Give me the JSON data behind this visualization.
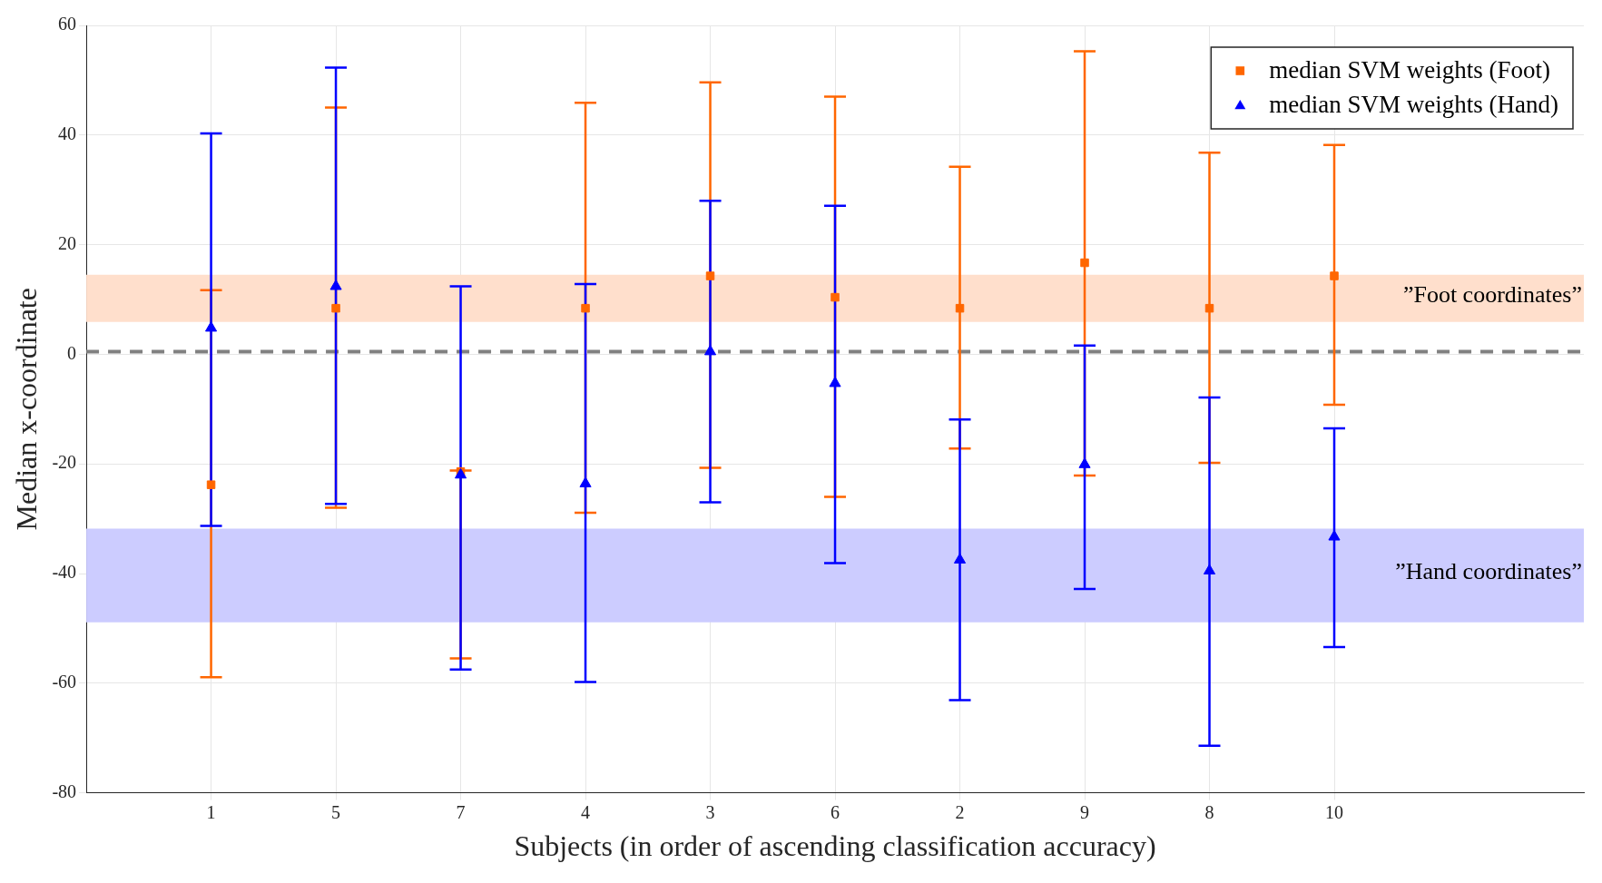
{
  "chart_data": {
    "type": "scatter",
    "xlabel": "Subjects (in order of ascending classification accuracy)",
    "ylabel": "Median x-coordinate",
    "categories": [
      null,
      "1",
      "5",
      "7",
      "4",
      "3",
      "6",
      "2",
      "9",
      "8",
      "10",
      null,
      null
    ],
    "ylim": [
      -80,
      60
    ],
    "yticks": [
      -80,
      -60,
      -40,
      -20,
      0,
      20,
      40,
      60
    ],
    "series": [
      {
        "name": "median SVM weights (Foot)",
        "color": "#ff6600",
        "marker": "square",
        "values": [
          null,
          -23.8,
          8.4,
          -21.4,
          8.4,
          14.3,
          10.4,
          8.4,
          16.7,
          8.4,
          14.3,
          null,
          null
        ],
        "errors": [
          null,
          [
            -58.9,
            11.7
          ],
          [
            -28,
            45
          ],
          [
            -55.5,
            -21.2
          ],
          [
            -28.9,
            45.9
          ],
          [
            -20.7,
            49.6
          ],
          [
            -26,
            47
          ],
          [
            -17.2,
            34.2
          ],
          [
            -22.1,
            55.3
          ],
          [
            -19.8,
            36.8
          ],
          [
            -9.2,
            38.2
          ],
          null,
          null
        ]
      },
      {
        "name": "median SVM weights (Hand)",
        "color": "#0000ff",
        "marker": "triangle",
        "values": [
          null,
          4.8,
          12.4,
          -22,
          -23.6,
          0.5,
          -5.3,
          -37.5,
          -20.1,
          -39.5,
          -33.3,
          null,
          null
        ],
        "errors": [
          null,
          [
            -31.3,
            40.3
          ],
          [
            -27.3,
            52.3
          ],
          [
            -57.5,
            12.4
          ],
          [
            -59.8,
            12.8
          ],
          [
            -27,
            28
          ],
          [
            -38.1,
            27.1
          ],
          [
            -63.1,
            -11.9
          ],
          [
            -42.8,
            1.6
          ],
          [
            -71.4,
            -7.9
          ],
          [
            -53.4,
            -13.5
          ],
          null,
          null
        ]
      }
    ],
    "bands": [
      {
        "axis": "y",
        "from": 5.9,
        "to": 14.5,
        "label": "”Foot coordinates”",
        "color": "#ffdfcc"
      },
      {
        "axis": "y",
        "from": -48.9,
        "to": -31.8,
        "label": "”Hand coordinates”",
        "color": "#ccccff"
      }
    ],
    "ref_lines": [
      {
        "axis": "y",
        "value": 0.5,
        "color": "#808080",
        "line_style": "dashed"
      }
    ],
    "grid": true,
    "legend": "top right"
  }
}
